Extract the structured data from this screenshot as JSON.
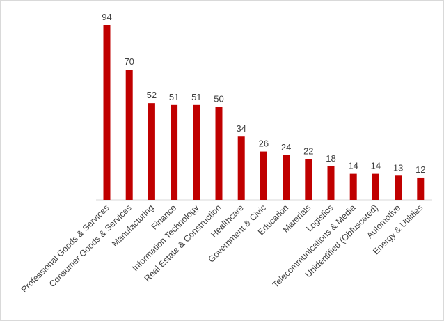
{
  "chart_data": {
    "type": "bar",
    "categories": [
      "Professional Goods & Services",
      "Consumer Goods & Services",
      "Manufacturing",
      "Finance",
      "Information Technology",
      "Real Estate & Construction",
      "Healthcare",
      "Government & Civic",
      "Education",
      "Materials",
      "Logistics",
      "Telecommunications & Media",
      "Unidentified (Obfuscated)",
      "Automotive",
      "Energy & Utilities"
    ],
    "values": [
      94,
      70,
      52,
      51,
      51,
      50,
      34,
      26,
      24,
      22,
      18,
      14,
      14,
      13,
      12
    ],
    "ylim": [
      0,
      94
    ],
    "grid": false,
    "data_labels": true,
    "bar_color": "#c00000",
    "axis_color": "#d9d9d9",
    "text_color": "#404040"
  }
}
